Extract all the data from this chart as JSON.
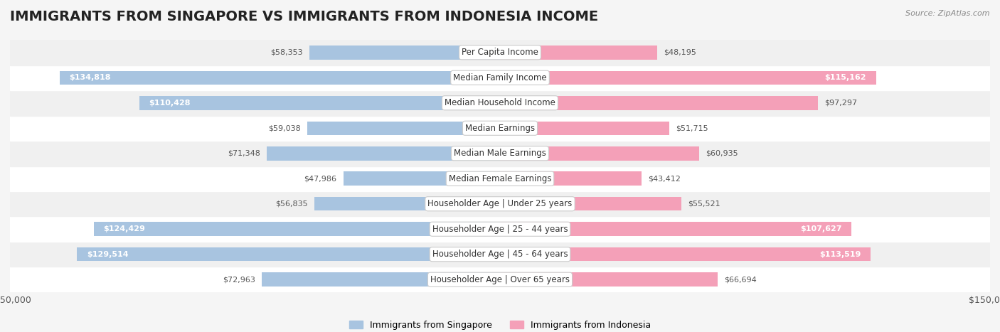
{
  "title": "IMMIGRANTS FROM SINGAPORE VS IMMIGRANTS FROM INDONESIA INCOME",
  "source": "Source: ZipAtlas.com",
  "categories": [
    "Per Capita Income",
    "Median Family Income",
    "Median Household Income",
    "Median Earnings",
    "Median Male Earnings",
    "Median Female Earnings",
    "Householder Age | Under 25 years",
    "Householder Age | 25 - 44 years",
    "Householder Age | 45 - 64 years",
    "Householder Age | Over 65 years"
  ],
  "singapore_values": [
    58353,
    134818,
    110428,
    59038,
    71348,
    47986,
    56835,
    124429,
    129514,
    72963
  ],
  "indonesia_values": [
    48195,
    115162,
    97297,
    51715,
    60935,
    43412,
    55521,
    107627,
    113519,
    66694
  ],
  "singapore_color": "#a8c4e0",
  "singapore_color_dark": "#6a9fc0",
  "indonesia_color": "#f4a0b8",
  "indonesia_color_dark": "#e8607a",
  "max_value": 150000,
  "bar_height": 0.55,
  "background_color": "#f5f5f5",
  "row_colors": [
    "#ffffff",
    "#f0f0f0"
  ],
  "title_fontsize": 14,
  "label_fontsize": 8.5,
  "value_fontsize": 8,
  "legend_singapore": "Immigrants from Singapore",
  "legend_indonesia": "Immigrants from Indonesia"
}
